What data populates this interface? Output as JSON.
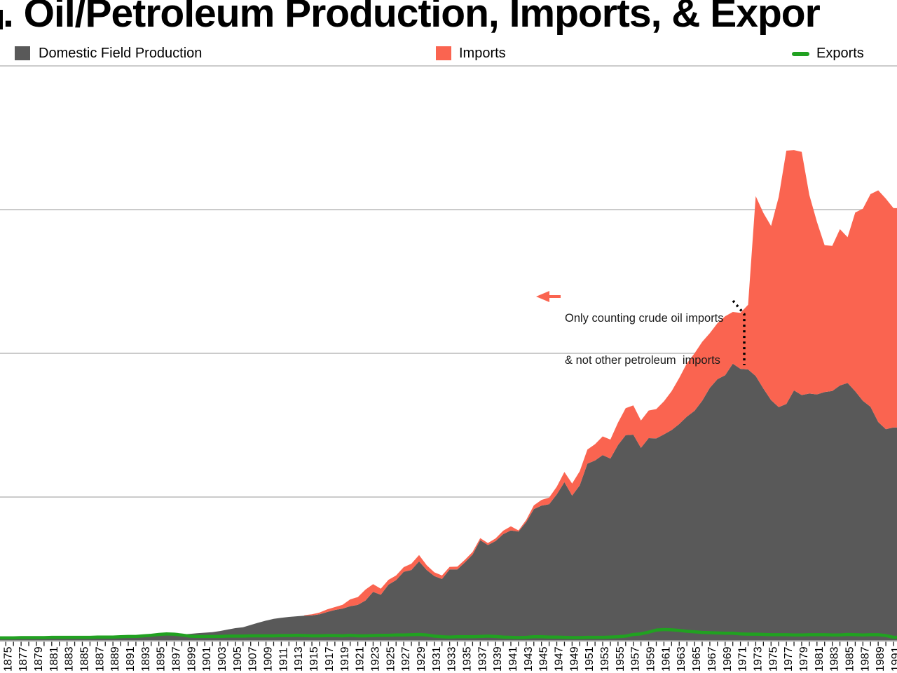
{
  "title": {
    "visible_text": ". Oil/Petroleum Production, Imports, & Expor"
  },
  "legend": [
    {
      "label": "Domestic Field Production",
      "swatch": "square",
      "color": "#595959"
    },
    {
      "label": "Imports",
      "swatch": "square",
      "color": "#fa6450"
    },
    {
      "label": "Exports",
      "swatch": "dash",
      "color": "#21a121"
    }
  ],
  "annotation": {
    "line1": "Only counting crude oil imports",
    "line2": "& not other petroleum  imports",
    "arrow_color": "#fa6450",
    "pointer_year": 1972
  },
  "colors": {
    "production_fill": "#595959",
    "imports_fill": "#fa6450",
    "exports_line": "#21a121",
    "gridline": "#cbcbcb",
    "axis_line": "#9b9b9b",
    "tick": "#1a1a1a",
    "background": "#ffffff"
  },
  "chart_data": {
    "type": "area",
    "stacking": "Imports band stacked on top of Domestic Field Production; Exports drawn as line near zero",
    "x_range": [
      1874,
      1991
    ],
    "y_axis": {
      "labels_visible": false,
      "note": "y-axis tick labels are cropped out of the image; values estimated in million barrels per day, gridlines every 5 units",
      "gridline_values": [
        5,
        10,
        15,
        20
      ],
      "ylim": [
        0,
        20.9
      ]
    },
    "series": [
      {
        "name": "Domestic Field Production",
        "type": "area",
        "color": "#595959",
        "values": [
          0.06,
          0.07,
          0.07,
          0.07,
          0.08,
          0.08,
          0.09,
          0.1,
          0.1,
          0.09,
          0.1,
          0.1,
          0.11,
          0.11,
          0.12,
          0.13,
          0.16,
          0.17,
          0.17,
          0.17,
          0.18,
          0.19,
          0.2,
          0.21,
          0.22,
          0.24,
          0.26,
          0.28,
          0.3,
          0.34,
          0.39,
          0.44,
          0.47,
          0.55,
          0.63,
          0.7,
          0.76,
          0.8,
          0.83,
          0.85,
          0.87,
          0.88,
          0.92,
          1.0,
          1.07,
          1.12,
          1.2,
          1.25,
          1.4,
          1.7,
          1.6,
          1.95,
          2.11,
          2.4,
          2.46,
          2.76,
          2.46,
          2.25,
          2.15,
          2.48,
          2.48,
          2.73,
          3.0,
          3.5,
          3.33,
          3.47,
          3.71,
          3.84,
          3.8,
          4.13,
          4.58,
          4.7,
          4.75,
          5.09,
          5.52,
          5.05,
          5.41,
          6.16,
          6.27,
          6.46,
          6.34,
          6.81,
          7.15,
          7.17,
          6.71,
          7.05,
          7.04,
          7.18,
          7.33,
          7.54,
          7.8,
          8.0,
          8.35,
          8.8,
          9.1,
          9.24,
          9.64,
          9.46,
          9.44,
          9.21,
          8.77,
          8.37,
          8.13,
          8.24,
          8.71,
          8.55,
          8.6,
          8.57,
          8.65,
          8.69,
          8.88,
          8.97,
          8.68,
          8.35,
          8.14,
          7.61,
          7.36,
          7.42
        ]
      },
      {
        "name": "Imports",
        "type": "area",
        "stacked_on": "Domestic Field Production",
        "color": "#fa6450",
        "note": "pre-1973 only crude oil imports; 1973 onward all petroleum imports (see annotation)",
        "values": [
          0,
          0,
          0,
          0,
          0,
          0,
          0,
          0,
          0,
          0,
          0,
          0,
          0,
          0,
          0,
          0,
          0,
          0,
          0,
          0,
          0,
          0,
          0,
          0,
          0,
          0,
          0,
          0,
          0,
          0,
          0,
          0,
          0,
          0,
          0,
          0,
          0,
          0,
          0,
          0,
          0.02,
          0.04,
          0.06,
          0.09,
          0.1,
          0.13,
          0.24,
          0.27,
          0.38,
          0.27,
          0.21,
          0.17,
          0.16,
          0.16,
          0.22,
          0.22,
          0.17,
          0.13,
          0.12,
          0.09,
          0.1,
          0.09,
          0.09,
          0.07,
          0.07,
          0.09,
          0.12,
          0.14,
          0.04,
          0.07,
          0.13,
          0.2,
          0.23,
          0.27,
          0.35,
          0.42,
          0.49,
          0.49,
          0.57,
          0.65,
          0.66,
          0.78,
          0.94,
          1.02,
          0.95,
          0.96,
          1.02,
          1.15,
          1.35,
          1.6,
          1.85,
          2.0,
          2.05,
          1.9,
          1.95,
          2.05,
          1.8,
          1.95,
          2.25,
          6.26,
          6.11,
          6.06,
          7.31,
          8.81,
          8.36,
          8.46,
          6.91,
          6.0,
          5.11,
          5.05,
          5.44,
          5.07,
          6.22,
          6.68,
          7.4,
          8.06,
          8.02,
          7.63
        ]
      },
      {
        "name": "Exports",
        "type": "line",
        "color": "#21a121",
        "values": [
          0.1,
          0.1,
          0.1,
          0.11,
          0.11,
          0.11,
          0.11,
          0.12,
          0.12,
          0.12,
          0.12,
          0.12,
          0.12,
          0.13,
          0.13,
          0.13,
          0.14,
          0.15,
          0.15,
          0.17,
          0.19,
          0.22,
          0.24,
          0.23,
          0.2,
          0.16,
          0.15,
          0.15,
          0.15,
          0.15,
          0.16,
          0.16,
          0.16,
          0.17,
          0.17,
          0.17,
          0.17,
          0.18,
          0.18,
          0.19,
          0.18,
          0.17,
          0.17,
          0.18,
          0.18,
          0.17,
          0.19,
          0.17,
          0.17,
          0.18,
          0.19,
          0.19,
          0.2,
          0.2,
          0.21,
          0.22,
          0.2,
          0.16,
          0.14,
          0.13,
          0.14,
          0.14,
          0.14,
          0.15,
          0.16,
          0.15,
          0.13,
          0.12,
          0.11,
          0.12,
          0.14,
          0.14,
          0.13,
          0.13,
          0.12,
          0.11,
          0.11,
          0.12,
          0.12,
          0.12,
          0.13,
          0.14,
          0.16,
          0.22,
          0.24,
          0.3,
          0.37,
          0.39,
          0.38,
          0.36,
          0.33,
          0.31,
          0.29,
          0.28,
          0.27,
          0.26,
          0.26,
          0.24,
          0.23,
          0.23,
          0.22,
          0.21,
          0.21,
          0.21,
          0.2,
          0.2,
          0.21,
          0.21,
          0.21,
          0.2,
          0.2,
          0.22,
          0.21,
          0.2,
          0.21,
          0.21,
          0.18,
          0.12
        ]
      }
    ],
    "x_axis": {
      "ticks_every_year": true,
      "tick_label_years": [
        1875,
        1877,
        1879,
        1881,
        1883,
        1885,
        1887,
        1889,
        1891,
        1893,
        1895,
        1897,
        1899,
        1901,
        1903,
        1905,
        1907,
        1909,
        1911,
        1913,
        1915,
        1917,
        1919,
        1921,
        1923,
        1925,
        1927,
        1929,
        1931,
        1933,
        1935,
        1937,
        1939,
        1941,
        1943,
        1945,
        1947,
        1949,
        1951,
        1953,
        1955,
        1957,
        1959,
        1961,
        1963,
        1965,
        1967,
        1969,
        1971,
        1973,
        1975,
        1977,
        1979,
        1981,
        1983,
        1985,
        1987,
        1989,
        1991
      ]
    },
    "legend_position": "top"
  }
}
